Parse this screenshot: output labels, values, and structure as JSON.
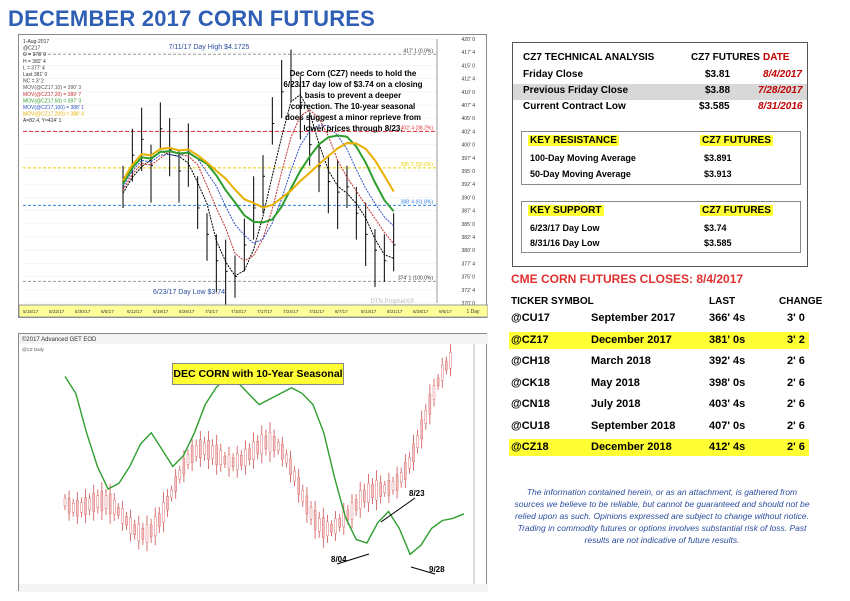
{
  "title": "DECEMBER 2017 CORN FUTURES",
  "chart_top": {
    "header_lines": [
      "1-Aug-2017",
      "@CZ17",
      "O = 378' 0",
      "H = 382' 4",
      "L = 377' 4",
      "Last 381' 0",
      "NC = 3' 2",
      "MOV(@CZ17,10) = 390' 3",
      "MOV(@CZ17,20) = 389' 7",
      "MOV(@CZ17,50) = 397' 3",
      "MOV(@CZ17,100) = 388' 1",
      "MOV(@CZ17,200) = 388' 4",
      "A=82.4, Y=424' 1"
    ],
    "high_label": "7/11/17 Day High $4.1725",
    "low_label": "6/23/17 Day Low $3.74",
    "annotation": "Dec Corn (CZ7) needs to hold the 6/23/17 day low of $3.74 on a closing basis to prevent a deeper correction. The 10-year seasonal does suggest a minor reprieve from lower prices through 8/23.",
    "level_labels": [
      "417' 1 (0.0%)",
      "402' 4 (38.2%)",
      "395' 5 (50.0%)",
      "388' 4 (61.8%)",
      "374' 1 (100.0%)"
    ],
    "y_ticks": [
      "420' 0",
      "417' 4",
      "415' 0",
      "412' 4",
      "410' 0",
      "407' 4",
      "405' 0",
      "402' 4",
      "400' 0",
      "397' 4",
      "395' 0",
      "392' 4",
      "390' 0",
      "387' 4",
      "385' 0",
      "382' 4",
      "380' 0",
      "377' 4",
      "375' 0",
      "372' 4",
      "370' 0"
    ],
    "x_ticks": [
      "5/15/17",
      "5/22/17",
      "5/30/17",
      "6/5/17",
      "6/12/17",
      "6/19/17",
      "6/26/17",
      "7/3/17",
      "7/10/17",
      "7/17/17",
      "7/24/17",
      "7/31/17",
      "8/7/17",
      "8/14/17",
      "8/21/17",
      "8/28/17",
      "9/5/17"
    ],
    "watermark": "DTN ProphetX®",
    "interval": "1 Day"
  },
  "chart_bottom": {
    "header": "©2017 Advanced GET EOD",
    "sub_header": "@CZ Daily",
    "label": "DEC CORN with 10-Year Seasonal",
    "markers": [
      "8/23",
      "8/04",
      "9/28"
    ]
  },
  "technical": {
    "header": [
      "CZ7 TECHNICAL ANALYSIS",
      "CZ7 FUTURES",
      "DATE"
    ],
    "rows": [
      {
        "label": "Friday Close",
        "value": "$3.81",
        "date": "8/4/2017"
      },
      {
        "label": "Previous Friday Close",
        "value": "$3.88",
        "date": "7/28/2017"
      },
      {
        "label": "Current Contract Low",
        "value": "$3.585",
        "date": "8/31/2016"
      }
    ],
    "resistance": {
      "header": [
        "KEY RESISTANCE",
        "CZ7 FUTURES"
      ],
      "rows": [
        {
          "label": "100-Day Moving Average",
          "value": "$3.891"
        },
        {
          "label": "50-Day Moving Average",
          "value": "$3.913"
        }
      ]
    },
    "support": {
      "header": [
        "KEY SUPPORT",
        "CZ7 FUTURES"
      ],
      "rows": [
        {
          "label": "6/23/17 Day Low",
          "value": "$3.74"
        },
        {
          "label": "8/31/16 Day Low",
          "value": "$3.585"
        }
      ]
    }
  },
  "closes": {
    "title": "CME CORN FUTURES CLOSES:  8/4/2017",
    "columns": [
      "TICKER SYMBOL",
      "LAST",
      "CHANGE"
    ],
    "rows": [
      {
        "ticker": "@CU17",
        "month": "September 2017",
        "last": "366' 4s",
        "change": "3' 0",
        "highlight": false
      },
      {
        "ticker": "@CZ17",
        "month": "December 2017",
        "last": "381' 0s",
        "change": "3' 2",
        "highlight": true
      },
      {
        "ticker": "@CH18",
        "month": "March 2018",
        "last": "392' 4s",
        "change": "2' 6",
        "highlight": false
      },
      {
        "ticker": "@CK18",
        "month": "May 2018",
        "last": "398' 0s",
        "change": "2' 6",
        "highlight": false
      },
      {
        "ticker": "@CN18",
        "month": "July 2018",
        "last": "403' 4s",
        "change": "2' 6",
        "highlight": false
      },
      {
        "ticker": "@CU18",
        "month": "September 2018",
        "last": "407' 0s",
        "change": "2' 6",
        "highlight": false
      },
      {
        "ticker": "@CZ18",
        "month": "December 2018",
        "last": "412' 4s",
        "change": "2' 6",
        "highlight": true
      }
    ]
  },
  "disclaimer": "The information contained herein, or as an attachment, is gathered from sources we believe to be reliable, but cannot be guaranteed and should not be relied upon as such. Opinions expressed are subject to change without notice. Trading in commodity futures or options involves substantial risk of loss. Past results are not indicative of future results.",
  "colors": {
    "title": "#2f5fb5",
    "highlight": "#ffff33",
    "red": "#c00000",
    "seasonal": "#2e9e2e"
  },
  "chart_data": [
    {
      "type": "line",
      "title": "",
      "series": [
        {
          "values": [
            392,
            398,
            401,
            396,
            403,
            399,
            395,
            399,
            388,
            383,
            378,
            376,
            375,
            381,
            388,
            394,
            404,
            410,
            414,
            408,
            400,
            396,
            393,
            391,
            392,
            387,
            383,
            380,
            378,
            381
          ]
        }
      ],
      "ylim": [
        370,
        420
      ]
    },
    {
      "type": "line",
      "title": "DEC CORN with 10-Year Seasonal",
      "series": [
        {
          "values": [
            520,
            505,
            470,
            440,
            420,
            425,
            440,
            460,
            470,
            455,
            440,
            450,
            470,
            495,
            510,
            520,
            515,
            505,
            495,
            500,
            505,
            510,
            505,
            495,
            470,
            430,
            395,
            375,
            372,
            390,
            400,
            385,
            362,
            370,
            385,
            392,
            394,
            398
          ]
        }
      ]
    }
  ]
}
